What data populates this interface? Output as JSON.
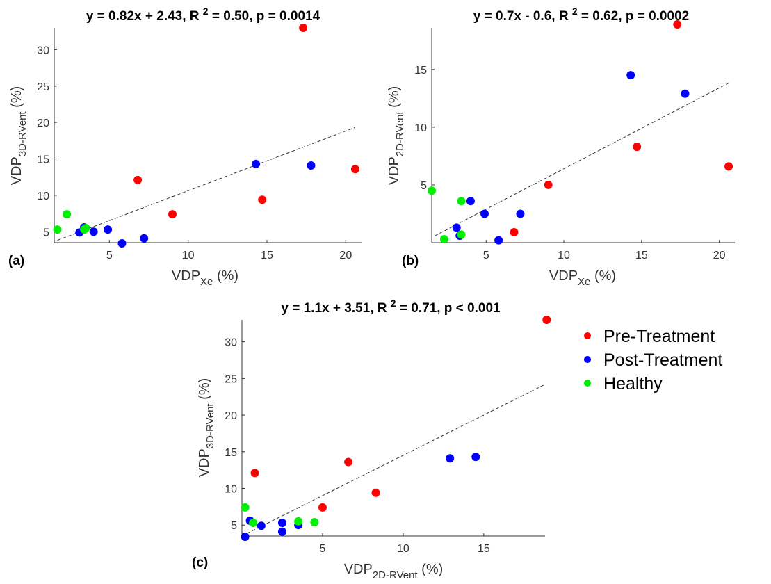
{
  "colors": {
    "pre": "#ff0000",
    "post": "#0000ff",
    "healthy": "#00ee00",
    "axis": "#333333",
    "fit": "#333333"
  },
  "legend": [
    {
      "label": "Pre-Treatment",
      "color": "#ff0000"
    },
    {
      "label": "Post-Treatment",
      "color": "#0000ff"
    },
    {
      "label": "Healthy",
      "color": "#00ee00"
    }
  ],
  "chart_data": [
    {
      "id": "a",
      "panel_label": "(a)",
      "type": "scatter",
      "title": {
        "prefix": "y = 0.82x + 2.43, R ",
        "sup": "2",
        "suffix": " = 0.50, p = 0.0014"
      },
      "xlabel": {
        "main": "VDP",
        "sub": "Xe",
        "unit": " (%)"
      },
      "ylabel": {
        "main": "VDP",
        "sub": "3D-RVent",
        "unit": " (%)"
      },
      "xlim": [
        1.5,
        21
      ],
      "ylim": [
        3.5,
        33
      ],
      "xticks": [
        5,
        10,
        15,
        20
      ],
      "yticks": [
        5,
        10,
        15,
        20,
        25,
        30
      ],
      "fit": {
        "slope": 0.82,
        "intercept": 2.43,
        "x": [
          1.7,
          20.6
        ]
      },
      "series": [
        {
          "name": "Pre-Treatment",
          "color": "#ff0000",
          "x": [
            17.3,
            20.6,
            14.7,
            9.0,
            6.8
          ],
          "y": [
            33.0,
            13.6,
            9.4,
            7.4,
            12.1
          ]
        },
        {
          "name": "Post-Treatment",
          "color": "#0000ff",
          "x": [
            14.3,
            17.8,
            3.4,
            3.1,
            4.0,
            4.9,
            5.8,
            7.2
          ],
          "y": [
            14.3,
            14.1,
            5.6,
            4.9,
            5.0,
            5.3,
            3.4,
            4.1
          ]
        },
        {
          "name": "Healthy",
          "color": "#00ee00",
          "x": [
            1.7,
            2.3,
            3.5,
            3.4
          ],
          "y": [
            5.3,
            7.4,
            5.5,
            5.3
          ]
        }
      ]
    },
    {
      "id": "b",
      "panel_label": "(b)",
      "type": "scatter",
      "title": {
        "prefix": "y = 0.7x - 0.6, R ",
        "sup": "2",
        "suffix": " = 0.62, p = 0.0002"
      },
      "xlabel": {
        "main": "VDP",
        "sub": "Xe",
        "unit": " (%)"
      },
      "ylabel": {
        "main": "VDP",
        "sub": "2D-RVent",
        "unit": " (%)"
      },
      "xlim": [
        1.5,
        21
      ],
      "ylim": [
        0,
        18.6
      ],
      "xticks": [
        5,
        10,
        15,
        20
      ],
      "yticks": [
        5,
        10,
        15
      ],
      "fit": {
        "slope": 0.7,
        "intercept": -0.6,
        "x": [
          1.7,
          20.6
        ]
      },
      "series": [
        {
          "name": "Pre-Treatment",
          "color": "#ff0000",
          "x": [
            17.3,
            14.7,
            20.6,
            9.0,
            6.8
          ],
          "y": [
            18.9,
            8.3,
            6.6,
            5.0,
            0.9
          ]
        },
        {
          "name": "Post-Treatment",
          "color": "#0000ff",
          "x": [
            14.3,
            17.8,
            4.0,
            4.9,
            7.2,
            3.1,
            3.3,
            5.8
          ],
          "y": [
            14.5,
            12.9,
            3.6,
            2.5,
            2.5,
            1.3,
            0.6,
            0.2
          ]
        },
        {
          "name": "Healthy",
          "color": "#00ee00",
          "x": [
            1.5,
            3.4,
            2.3,
            3.4
          ],
          "y": [
            4.5,
            3.6,
            0.3,
            0.7
          ]
        }
      ]
    },
    {
      "id": "c",
      "panel_label": "(c)",
      "type": "scatter",
      "title": {
        "prefix": "y = 1.1x + 3.51, R ",
        "sup": "2",
        "suffix": " = 0.71, p < 0.001"
      },
      "xlabel": {
        "main": "VDP",
        "sub": "2D-RVent",
        "unit": " (%)"
      },
      "ylabel": {
        "main": "VDP",
        "sub": "3D-RVent",
        "unit": " (%)"
      },
      "xlim": [
        0,
        18.8
      ],
      "ylim": [
        3.5,
        33
      ],
      "xticks": [
        5,
        10,
        15
      ],
      "yticks": [
        5,
        10,
        15,
        20,
        25,
        30
      ],
      "fit": {
        "slope": 1.1,
        "intercept": 3.51,
        "x": [
          0,
          18.8
        ]
      },
      "series": [
        {
          "name": "Pre-Treatment",
          "color": "#ff0000",
          "x": [
            18.9,
            0.8,
            6.6,
            8.3,
            5.0
          ],
          "y": [
            33.0,
            12.1,
            13.6,
            9.4,
            7.4
          ]
        },
        {
          "name": "Post-Treatment",
          "color": "#0000ff",
          "x": [
            12.9,
            14.5,
            0.5,
            1.2,
            2.5,
            2.5,
            3.5,
            0.2
          ],
          "y": [
            14.1,
            14.3,
            5.6,
            4.9,
            5.3,
            4.1,
            5.0,
            3.4
          ]
        },
        {
          "name": "Healthy",
          "color": "#00ee00",
          "x": [
            0.2,
            0.7,
            3.5,
            4.5
          ],
          "y": [
            7.4,
            5.3,
            5.5,
            5.4
          ]
        }
      ]
    }
  ]
}
